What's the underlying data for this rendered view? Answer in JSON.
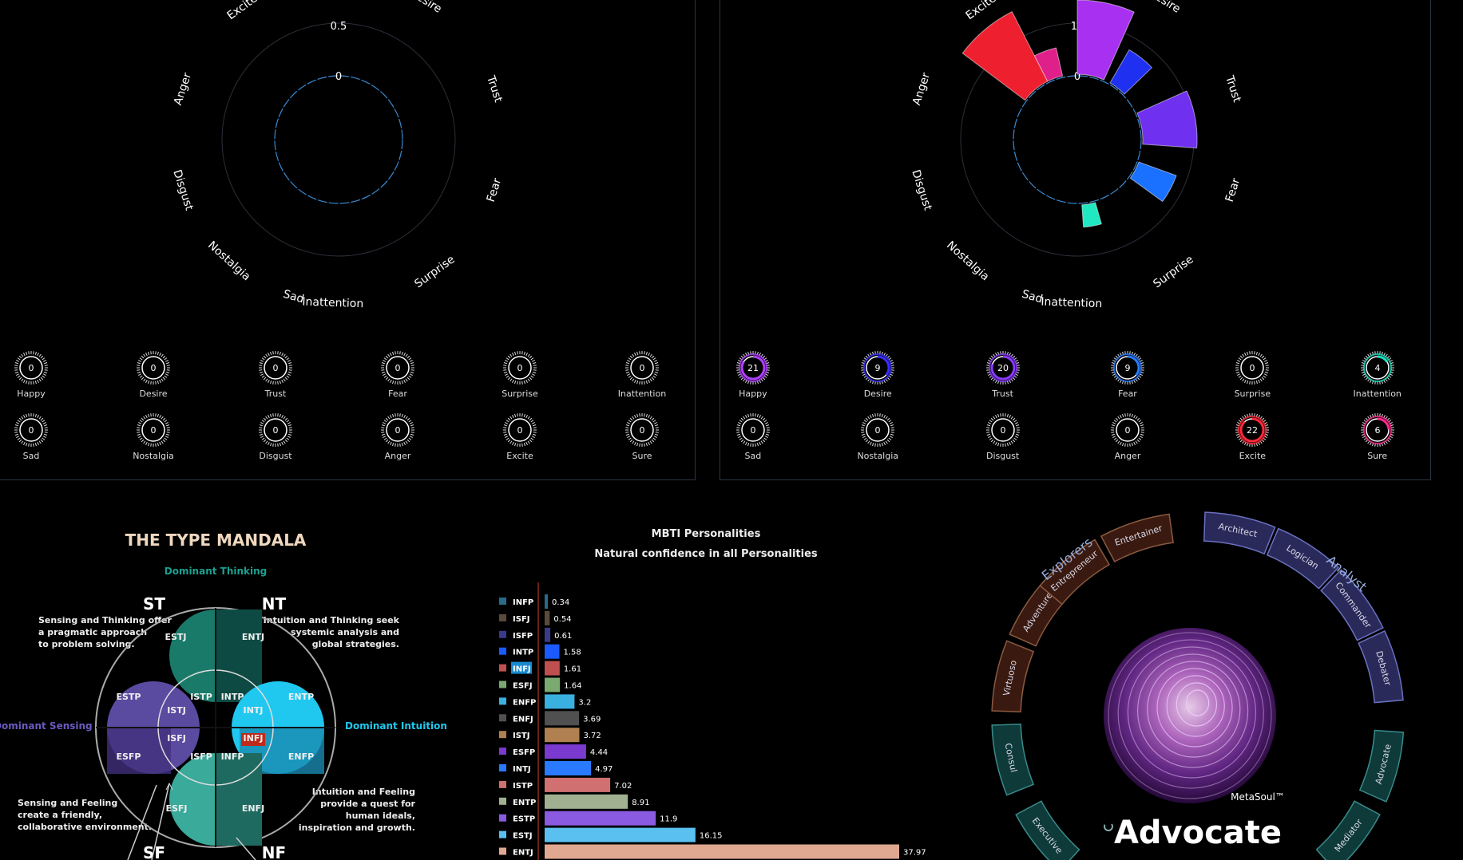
{
  "emotion_labels": [
    "Excite",
    "Desire",
    "Trust",
    "Fear",
    "Surprise",
    "Inattention",
    "Sad",
    "Nostalgia",
    "Disgust",
    "Anger"
  ],
  "left_radar": {
    "ticks": [
      "0",
      "0.5"
    ]
  },
  "right_radar": {
    "ticks": [
      "0",
      "10"
    ]
  },
  "left_gauges": [
    {
      "label": "Happy",
      "value": "0"
    },
    {
      "label": "Desire",
      "value": "0"
    },
    {
      "label": "Trust",
      "value": "0"
    },
    {
      "label": "Fear",
      "value": "0"
    },
    {
      "label": "Surprise",
      "value": "0"
    },
    {
      "label": "Inattention",
      "value": "0"
    },
    {
      "label": "Sad",
      "value": "0"
    },
    {
      "label": "Nostalgia",
      "value": "0"
    },
    {
      "label": "Disgust",
      "value": "0"
    },
    {
      "label": "Anger",
      "value": "0"
    },
    {
      "label": "Excite",
      "value": "0"
    },
    {
      "label": "Sure",
      "value": "0"
    }
  ],
  "right_gauges": [
    {
      "label": "Happy",
      "value": "21",
      "color": "#b040ff",
      "level": 0.21
    },
    {
      "label": "Desire",
      "value": "9",
      "color": "#3a30ff",
      "level": 0.09
    },
    {
      "label": "Trust",
      "value": "20",
      "color": "#8a3aff",
      "level": 0.2
    },
    {
      "label": "Fear",
      "value": "9",
      "color": "#2a7aff",
      "level": 0.09
    },
    {
      "label": "Surprise",
      "value": "0",
      "color": "#ffffff",
      "level": 0
    },
    {
      "label": "Inattention",
      "value": "4",
      "color": "#20e0c0",
      "level": 0.04
    },
    {
      "label": "Sad",
      "value": "0",
      "color": "#ffffff",
      "level": 0
    },
    {
      "label": "Nostalgia",
      "value": "0",
      "color": "#ffffff",
      "level": 0
    },
    {
      "label": "Disgust",
      "value": "0",
      "color": "#ffffff",
      "level": 0
    },
    {
      "label": "Anger",
      "value": "0",
      "color": "#ffffff",
      "level": 0
    },
    {
      "label": "Excite",
      "value": "22",
      "color": "#ff2a3a",
      "level": 0.22
    },
    {
      "label": "Sure",
      "value": "6",
      "color": "#ff2a8a",
      "level": 0.06
    }
  ],
  "mandala": {
    "title": "THE TYPE MANDALA",
    "dominant_thinking": "Dominant Thinking",
    "dominant_sensing": "Dominant Sensing",
    "dominant_intuition": "Dominant Intuition",
    "st": "ST",
    "nt": "NT",
    "sf": "SF",
    "nf": "NF",
    "st_text": [
      "Sensing and Thinking offer",
      "a pragmatic approach",
      "to problem solving."
    ],
    "nt_text": [
      "Intuition and Thinking seek",
      "systemic analysis and",
      "global strategies."
    ],
    "sf_text": [
      "Sensing and Feeling",
      "create a friendly,",
      "collaborative environment."
    ],
    "nf_text": [
      "Intuition and Feeling",
      "provide a quest for",
      "human ideals,",
      "inspiration and growth."
    ],
    "types": {
      "estj": "ESTJ",
      "entj": "ENTJ",
      "estp": "ESTP",
      "istp": "ISTP",
      "intp": "INTP",
      "entp": "ENTP",
      "istj": "ISTJ",
      "intj": "INTJ",
      "isfj": "ISFJ",
      "infj": "INFJ",
      "esfp": "ESFP",
      "isfp": "ISFP",
      "infp": "INFP",
      "enfp": "ENFP",
      "esfj": "ESFJ",
      "enfj": "ENFJ"
    }
  },
  "chart_data": {
    "type": "bar",
    "title": "MBTI Personalities",
    "subtitle": "Natural confidence in all Personalities",
    "categories": [
      "INFP",
      "ISFJ",
      "ISFP",
      "INTP",
      "INFJ",
      "ESFJ",
      "ENFP",
      "ENFJ",
      "ISTJ",
      "ESFP",
      "INTJ",
      "ISTP",
      "ENTP",
      "ESTP",
      "ESTJ",
      "ENTJ"
    ],
    "values": [
      0.34,
      0.54,
      0.61,
      1.58,
      1.61,
      1.64,
      3.2,
      3.69,
      3.72,
      4.44,
      4.97,
      7.02,
      8.91,
      11.9,
      16.15,
      37.97
    ],
    "colors": [
      "#2a6a8a",
      "#5a4a3a",
      "#3a3a8a",
      "#1a5aff",
      "#c05050",
      "#7aaa70",
      "#3ab0e0",
      "#505050",
      "#b08050",
      "#7a3ad0",
      "#2a7aff",
      "#d07070",
      "#a0b090",
      "#8a5ae0",
      "#5ac0f0",
      "#e0a890"
    ],
    "highlight": "INFJ"
  },
  "wheel": {
    "group_explorers": "Explorers",
    "group_analyst": "Analyst",
    "segments": [
      "Entertainer",
      "Architect",
      "Logician",
      "Commander",
      "Debater",
      "Advocate",
      "Mediator",
      "Executive",
      "Consul",
      "Virtuoso",
      "Adventurer",
      "Entrepreneur"
    ],
    "brand": "MetaSoul™",
    "result": "Advocate"
  }
}
